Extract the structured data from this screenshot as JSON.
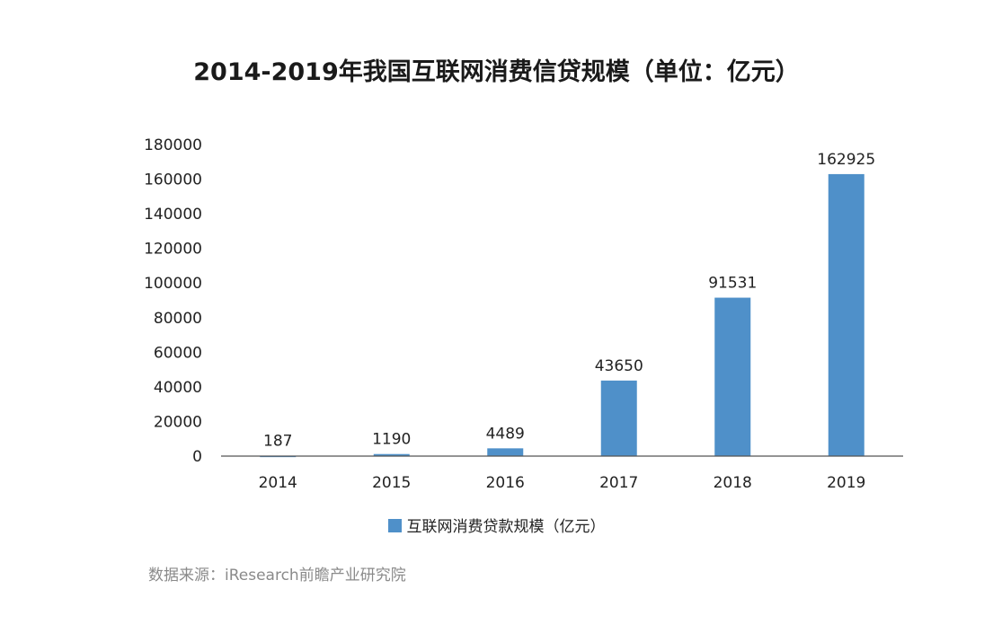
{
  "chart_data": {
    "type": "bar",
    "title": "2014-2019年我国互联网消费信贷规模（单位：亿元）",
    "categories": [
      "2014",
      "2015",
      "2016",
      "2017",
      "2018",
      "2019"
    ],
    "series": [
      {
        "name": "互联网消费贷款规模（亿元）",
        "values": [
          187,
          1190,
          4489,
          43650,
          91531,
          162925
        ],
        "color": "#4f90c9"
      }
    ],
    "xlabel": "",
    "ylabel": "",
    "ylim": [
      0,
      180000
    ],
    "yticks": [
      0,
      20000,
      40000,
      60000,
      80000,
      100000,
      120000,
      140000,
      160000,
      180000
    ],
    "data_labels": [
      "187",
      "1190",
      "4489",
      "43650",
      "91531",
      "162925"
    ],
    "grid": false,
    "legend_position": "bottom-center"
  },
  "source": "数据来源：iResearch前瞻产业研究院"
}
